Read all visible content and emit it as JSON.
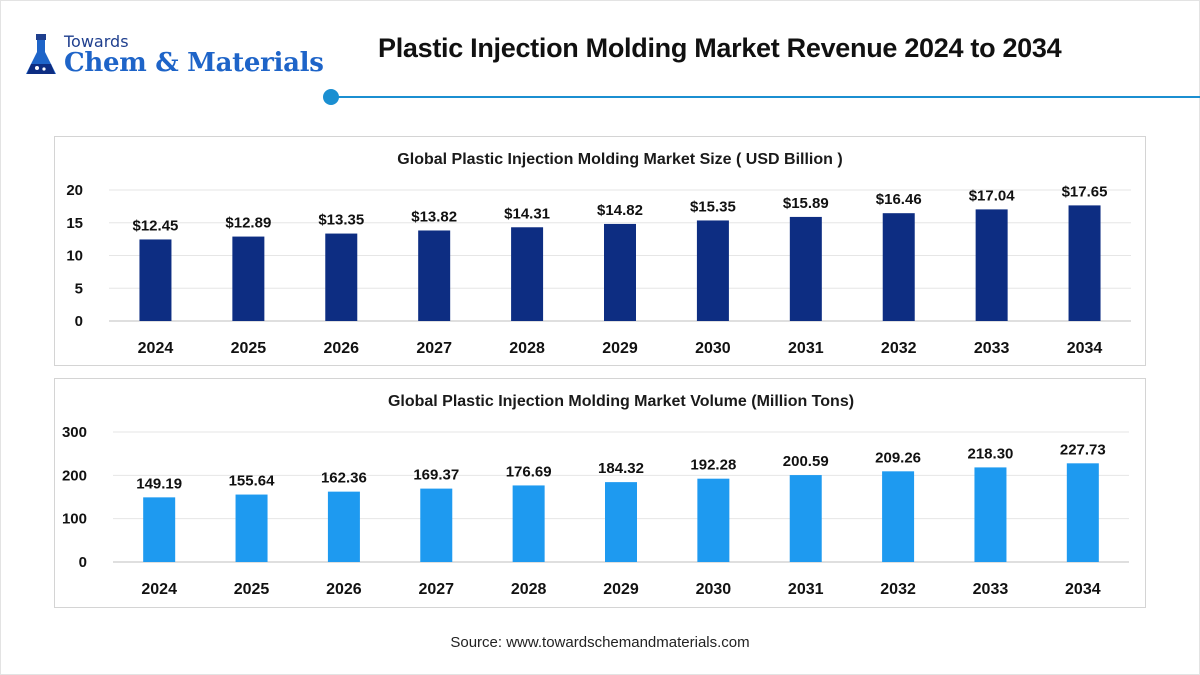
{
  "header": {
    "logo_top": "Towards",
    "logo_name": "Chem & Materials",
    "title": "Plastic Injection Molding Market Revenue 2024 to 2034"
  },
  "colors": {
    "accent": "#1b8fd1",
    "size_bar": "#0d2d82",
    "volume_bar": "#1e9af0"
  },
  "chart_data": [
    {
      "type": "bar",
      "title": "Global Plastic Injection Molding Market Size ( USD Billion )",
      "categories": [
        "2024",
        "2025",
        "2026",
        "2027",
        "2028",
        "2029",
        "2030",
        "2031",
        "2032",
        "2033",
        "2034"
      ],
      "values": [
        12.45,
        12.89,
        13.35,
        13.82,
        14.31,
        14.82,
        15.35,
        15.89,
        16.46,
        17.04,
        17.65
      ],
      "data_labels": [
        "$12.45",
        "$12.89",
        "$13.35",
        "$13.82",
        "$14.31",
        "$14.82",
        "$15.35",
        "$15.89",
        "$16.46",
        "$17.04",
        "$17.65"
      ],
      "yticks": [
        0,
        5,
        10,
        15,
        20
      ],
      "ylim": [
        0,
        20
      ],
      "grid": true,
      "xlabel": "",
      "ylabel": ""
    },
    {
      "type": "bar",
      "title": "Global Plastic Injection Molding Market Volume (Million Tons)",
      "categories": [
        "2024",
        "2025",
        "2026",
        "2027",
        "2028",
        "2029",
        "2030",
        "2031",
        "2032",
        "2033",
        "2034"
      ],
      "values": [
        149.19,
        155.64,
        162.36,
        169.37,
        176.69,
        184.32,
        192.28,
        200.59,
        209.26,
        218.3,
        227.73
      ],
      "data_labels": [
        "149.19",
        "155.64",
        "162.36",
        "169.37",
        "176.69",
        "184.32",
        "192.28",
        "200.59",
        "209.26",
        "218.30",
        "227.73"
      ],
      "yticks": [
        0,
        100,
        200,
        300
      ],
      "ylim": [
        0,
        300
      ],
      "grid": true,
      "xlabel": "",
      "ylabel": ""
    }
  ],
  "footer": {
    "source": "Source: www.towardschemandmaterials.com"
  }
}
